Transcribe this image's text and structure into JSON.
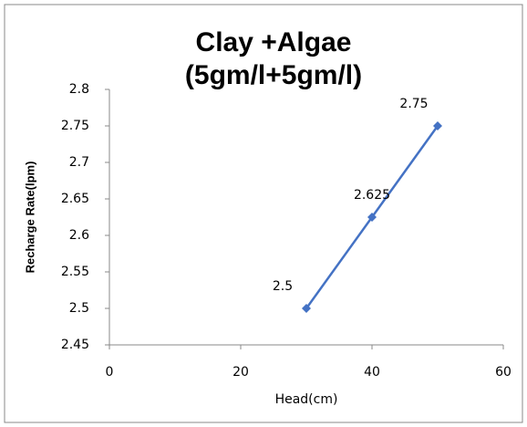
{
  "chart_data": {
    "type": "line",
    "title": [
      "Clay +Algae",
      "(5gm/l+5gm/l)"
    ],
    "x_label": "Head(cm)",
    "y_label": "Recharge Rate(lpm)",
    "series": [
      {
        "x": [
          30,
          40,
          50
        ],
        "values": [
          2.5,
          2.625,
          2.75
        ],
        "color": "#4472c4"
      }
    ],
    "xlim": [
      0,
      60
    ],
    "xticks": [
      0,
      20,
      40,
      60
    ],
    "ylim": [
      2.45,
      2.8
    ],
    "yticks": [
      2.45,
      2.5,
      2.55,
      2.6,
      2.65,
      2.7,
      2.75,
      2.8
    ],
    "grid": false
  }
}
